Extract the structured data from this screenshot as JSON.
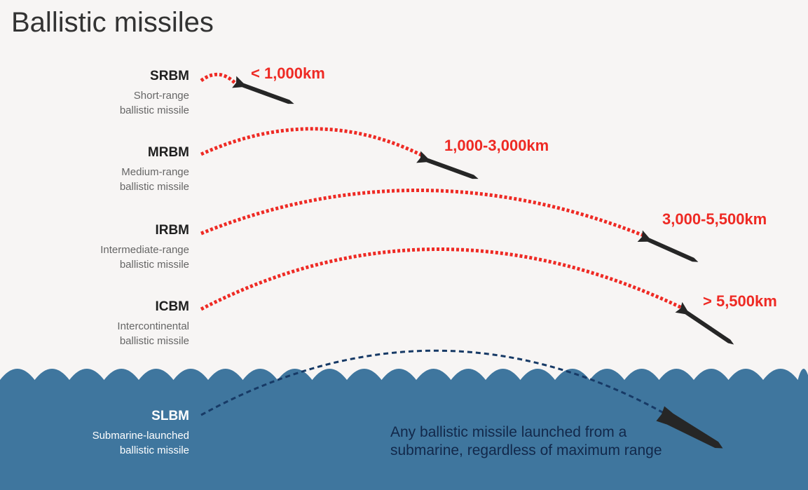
{
  "title": "Ballistic missiles",
  "colors": {
    "background": "#f7f5f4",
    "sea": "#3f769e",
    "trajectory": "#ee2a24",
    "sub_trajectory": "#173a66",
    "missile": "#262626",
    "range_text": "#ee2a24",
    "note_text": "#12284a"
  },
  "missiles": [
    {
      "abbr": "SRBM",
      "desc_line1": "Short-range",
      "desc_line2": "ballistic missile",
      "range": "< 1,000km"
    },
    {
      "abbr": "MRBM",
      "desc_line1": "Medium-range",
      "desc_line2": "ballistic missile",
      "range": "1,000-3,000km"
    },
    {
      "abbr": "IRBM",
      "desc_line1": "Intermediate-range",
      "desc_line2": "ballistic missile",
      "range": "3,000-5,500km"
    },
    {
      "abbr": "ICBM",
      "desc_line1": "Intercontinental",
      "desc_line2": "ballistic missile",
      "range": "> 5,500km"
    },
    {
      "abbr": "SLBM",
      "desc_line1": "Submarine-launched",
      "desc_line2": "ballistic missile",
      "range": ""
    }
  ],
  "slbm_note": "Any ballistic missile launched from a submarine, regardless of maximum range",
  "icons": {
    "missile": "missile-icon",
    "waves": "wave-icon"
  }
}
